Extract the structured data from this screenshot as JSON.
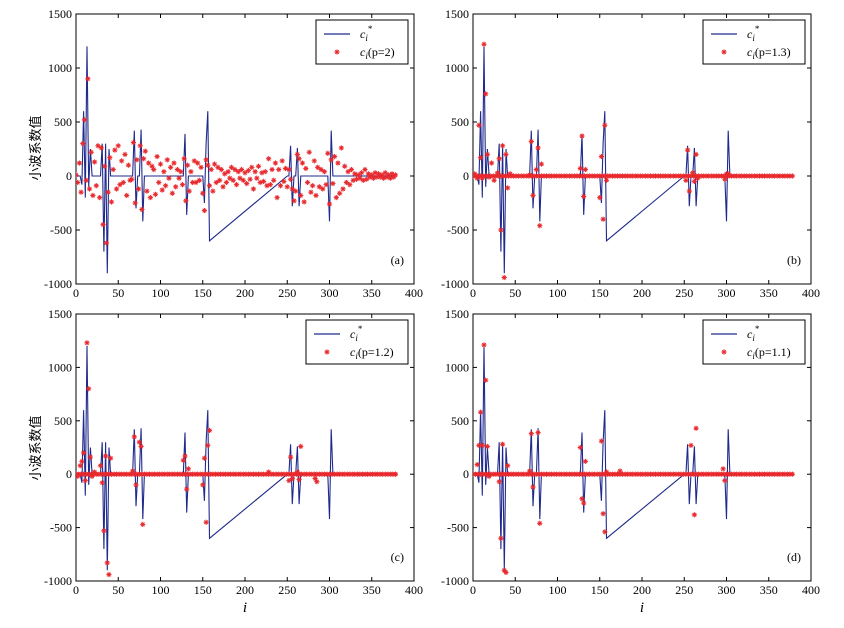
{
  "chart_data": {
    "type": "line",
    "layout": "2x2 panels",
    "shared": {
      "xlim": [
        0,
        400
      ],
      "ylim": [
        -1000,
        1500
      ],
      "xticks": [
        0,
        50,
        100,
        150,
        200,
        250,
        300,
        350,
        400
      ],
      "yticks": [
        -1000,
        -500,
        0,
        500,
        1000,
        1500
      ],
      "ylabel": "小波系数值",
      "xlabel": "i",
      "legend_position": "top-right",
      "grid": false,
      "line_color": "#1f2a8c",
      "marker_color": "#e8282c",
      "true_series": {
        "name": "c_i^*",
        "x": [
          0,
          3,
          5,
          7,
          9,
          11,
          13,
          15,
          17,
          19,
          21,
          23,
          25,
          27,
          29,
          31,
          33,
          35,
          37,
          39,
          41,
          43,
          45,
          67,
          69,
          71,
          73,
          75,
          77,
          79,
          81,
          127,
          129,
          131,
          133,
          135,
          150,
          152,
          154,
          156,
          158,
          250,
          252,
          254,
          256,
          258,
          260,
          262,
          264,
          266,
          268,
          298,
          300,
          302,
          304,
          378
        ],
        "y": [
          0,
          0,
          0,
          -80,
          600,
          -200,
          1200,
          -100,
          250,
          0,
          0,
          0,
          0,
          0,
          0,
          300,
          -700,
          300,
          -900,
          250,
          0,
          0,
          0,
          0,
          420,
          -300,
          0,
          0,
          430,
          -420,
          0,
          0,
          390,
          -360,
          0,
          0,
          0,
          -250,
          300,
          600,
          -600,
          0,
          0,
          280,
          -280,
          0,
          0,
          260,
          -280,
          0,
          0,
          0,
          -420,
          420,
          0,
          0
        ]
      }
    },
    "panels": [
      {
        "tag": "(a)",
        "legend_line": "c",
        "legend_line_sub": "i",
        "legend_line_sup": "*",
        "legend_marker": "c",
        "legend_marker_sub": "i",
        "legend_marker_param": "(p=2)",
        "series_name": "c_i(p=2)",
        "estimate_x": [
          0,
          2,
          4,
          6,
          8,
          10,
          12,
          14,
          16,
          18,
          20,
          22,
          24,
          26,
          28,
          30,
          32,
          34,
          36,
          38,
          40,
          42,
          44,
          46,
          48,
          50,
          52,
          54,
          56,
          58,
          60,
          62,
          64,
          66,
          68,
          70,
          72,
          74,
          76,
          78,
          80,
          82,
          84,
          86,
          88,
          90,
          92,
          94,
          96,
          98,
          100,
          102,
          104,
          106,
          108,
          110,
          112,
          114,
          116,
          118,
          120,
          122,
          124,
          126,
          128,
          130,
          132,
          134,
          136,
          138,
          140,
          142,
          144,
          146,
          148,
          150,
          152,
          154,
          156,
          158,
          160,
          162,
          164,
          166,
          168,
          170,
          172,
          174,
          176,
          178,
          180,
          182,
          184,
          186,
          188,
          190,
          192,
          194,
          196,
          198,
          200,
          202,
          204,
          206,
          208,
          210,
          212,
          214,
          216,
          218,
          220,
          222,
          224,
          226,
          228,
          230,
          232,
          234,
          236,
          238,
          240,
          242,
          244,
          246,
          248,
          250,
          252,
          254,
          256,
          258,
          260,
          262,
          264,
          266,
          268,
          270,
          272,
          274,
          276,
          278,
          280,
          282,
          284,
          286,
          288,
          290,
          292,
          294,
          296,
          298,
          300,
          302,
          304,
          306,
          308,
          310,
          312,
          314,
          316,
          318,
          320,
          322,
          324,
          326,
          328,
          330,
          332,
          334,
          336,
          338,
          340,
          342,
          344,
          346,
          348,
          350,
          352,
          354,
          356,
          358,
          360,
          362,
          364,
          366,
          368,
          370,
          372,
          374,
          376,
          378
        ],
        "estimate_y": [
          10,
          -60,
          120,
          -150,
          300,
          520,
          -40,
          900,
          -120,
          220,
          -180,
          130,
          -90,
          280,
          -200,
          260,
          -450,
          90,
          -620,
          -150,
          170,
          -240,
          60,
          240,
          -120,
          280,
          -80,
          140,
          -60,
          200,
          -180,
          100,
          -40,
          -30,
          310,
          -250,
          150,
          -120,
          280,
          -310,
          160,
          230,
          -140,
          120,
          -200,
          90,
          60,
          -170,
          180,
          -60,
          110,
          -130,
          40,
          -90,
          150,
          -20,
          80,
          -160,
          120,
          -100,
          60,
          -20,
          40,
          -80,
          160,
          -230,
          100,
          -140,
          40,
          -60,
          140,
          -60,
          120,
          -40,
          80,
          -160,
          -320,
          150,
          100,
          -90,
          60,
          -140,
          110,
          -60,
          80,
          -40,
          60,
          -100,
          20,
          -60,
          40,
          -20,
          80,
          -40,
          60,
          -80,
          40,
          -20,
          60,
          -40,
          30,
          -70,
          50,
          -30,
          80,
          -120,
          40,
          -20,
          90,
          -60,
          30,
          -50,
          40,
          -90,
          160,
          -80,
          60,
          -40,
          120,
          -200,
          60,
          -90,
          140,
          -50,
          70,
          -100,
          60,
          -30,
          -120,
          -230,
          -140,
          200,
          160,
          -180,
          120,
          -240,
          70,
          -60,
          220,
          -150,
          -90,
          140,
          -180,
          80,
          -100,
          60,
          -120,
          40,
          -80,
          210,
          -260,
          150,
          -70,
          180,
          -200,
          120,
          -160,
          260,
          -120,
          90,
          -60,
          40,
          -80,
          60,
          -40,
          20,
          -30,
          10,
          -20,
          30,
          -40,
          60,
          -30,
          20,
          -10,
          10,
          -20,
          30,
          -10,
          20,
          -10,
          10,
          -20,
          30,
          -10,
          10,
          -20,
          20,
          -10,
          10,
          0
        ]
      },
      {
        "tag": "(b)",
        "legend_line": "c",
        "legend_line_sub": "i",
        "legend_line_sup": "*",
        "legend_marker": "c",
        "legend_marker_sub": "i",
        "legend_marker_param": "(p=1.3)",
        "series_name": "c_i(p=1.3)",
        "estimate_x": [
          2,
          5,
          7,
          9,
          11,
          13,
          15,
          17,
          19,
          22,
          25,
          29,
          31,
          33,
          35,
          37,
          39,
          41,
          44,
          67,
          69,
          71,
          75,
          77,
          79,
          81,
          127,
          129,
          131,
          133,
          150,
          152,
          154,
          156,
          158,
          252,
          254,
          256,
          260,
          262,
          264,
          266,
          298,
          300,
          302
        ],
        "estimate_y": [
          20,
          -20,
          470,
          170,
          -20,
          1220,
          760,
          200,
          -10,
          120,
          -40,
          30,
          160,
          -500,
          280,
          -940,
          200,
          -110,
          20,
          10,
          320,
          -180,
          60,
          260,
          -460,
          110,
          70,
          370,
          -190,
          60,
          -200,
          180,
          -400,
          470,
          -40,
          -40,
          240,
          -140,
          30,
          -50,
          200,
          -20,
          -30,
          20,
          20
        ]
      },
      {
        "tag": "(c)",
        "legend_line": "c",
        "legend_line_sub": "i",
        "legend_line_sup": "*",
        "legend_marker": "c",
        "legend_marker_sub": "i",
        "legend_marker_param": "(p=1.2)",
        "series_name": "c_i(p=1.2)",
        "estimate_x": [
          2,
          5,
          7,
          9,
          11,
          13,
          15,
          17,
          19,
          22,
          29,
          31,
          33,
          35,
          37,
          39,
          41,
          67,
          69,
          71,
          75,
          77,
          79,
          127,
          129,
          131,
          133,
          150,
          152,
          154,
          156,
          158,
          228,
          252,
          254,
          256,
          262,
          264,
          266,
          283,
          285,
          378
        ],
        "estimate_y": [
          -20,
          80,
          120,
          200,
          -60,
          1230,
          800,
          160,
          -20,
          20,
          80,
          -80,
          -530,
          170,
          -830,
          -940,
          150,
          30,
          350,
          -100,
          300,
          260,
          -470,
          130,
          170,
          -140,
          50,
          -100,
          150,
          -450,
          270,
          410,
          20,
          -60,
          160,
          -40,
          20,
          -50,
          260,
          -40,
          -70,
          0
        ]
      },
      {
        "tag": "(d)",
        "legend_line": "c",
        "legend_line_sub": "i",
        "legend_line_sup": "*",
        "legend_marker": "c",
        "legend_marker_sub": "i",
        "legend_marker_param": "(p=1.1)",
        "series_name": "c_i(p=1.1)",
        "estimate_x": [
          5,
          7,
          9,
          11,
          13,
          15,
          17,
          19,
          31,
          33,
          35,
          37,
          39,
          41,
          67,
          69,
          71,
          77,
          79,
          127,
          129,
          131,
          133,
          152,
          154,
          156,
          158,
          174,
          258,
          262,
          264,
          296,
          298
        ],
        "estimate_y": [
          90,
          270,
          580,
          270,
          1210,
          880,
          260,
          -20,
          -70,
          -600,
          280,
          -900,
          -920,
          80,
          30,
          380,
          -120,
          390,
          -460,
          250,
          -230,
          -270,
          120,
          310,
          -370,
          -540,
          20,
          30,
          270,
          -380,
          430,
          50,
          -60
        ]
      }
    ]
  }
}
